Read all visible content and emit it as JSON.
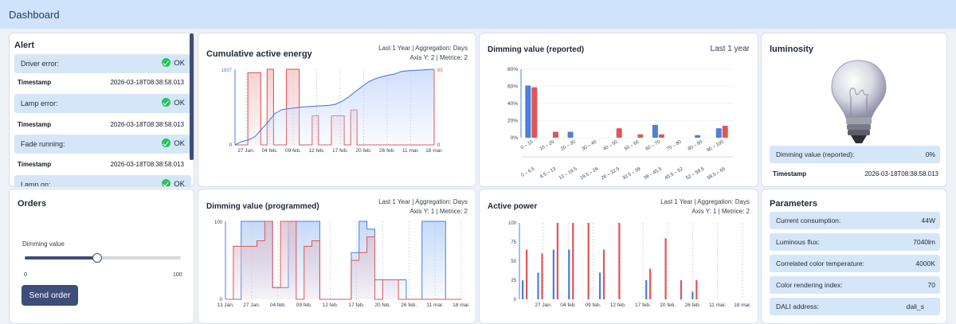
{
  "header": {
    "title": "Dashboard"
  },
  "alert": {
    "title": "Alert",
    "items": [
      {
        "label": "Driver error:",
        "status": "OK",
        "timestamp_label": "Timestamp",
        "timestamp": "2026-03-18T08:38:58.013"
      },
      {
        "label": "Lamp error:",
        "status": "OK",
        "timestamp_label": "Timestamp",
        "timestamp": "2026-03-18T08:38:58.013"
      },
      {
        "label": "Fade running:",
        "status": "OK",
        "timestamp_label": "Timestamp",
        "timestamp": "2026-03-18T08:38:58.013"
      },
      {
        "label": "Lamp on:",
        "status": "OK"
      }
    ]
  },
  "orders": {
    "title": "Orders",
    "slider_label": "Dimming value",
    "slider_min": "0",
    "slider_max": "100",
    "slider_value": 0.46,
    "button_label": "Send order"
  },
  "energy": {
    "title": "Cumulative active energy",
    "meta1": "Last 1 Year | Aggregation: Days",
    "meta2": "Axis Y: 2 | Metrice: 2",
    "chart_data": {
      "type": "line",
      "left_axis": {
        "max_label": "1837",
        "min_label": "0"
      },
      "right_axis": {
        "max_label": "65",
        "min_label": "0"
      },
      "x_labels": [
        "27 Jan.",
        "04 feb.",
        "09 feb.",
        "12 feb.",
        "17 feb.",
        "20 feb.",
        "26 feb.",
        "11 mar.",
        "18 mar."
      ],
      "series": [
        {
          "color": "#4a7fe0",
          "fill": "#c9d9fb",
          "axis": "left",
          "values": [
            0,
            80,
            120,
            200,
            380,
            560,
            760,
            850,
            880,
            900,
            920,
            930,
            940,
            950,
            960,
            980,
            1050,
            1150,
            1280,
            1400,
            1520,
            1600,
            1650,
            1690,
            1720,
            1780,
            1800,
            1810,
            1820,
            1830,
            1837
          ]
        },
        {
          "color": "#e05555",
          "fill": "#f6c8c8",
          "axis": "right",
          "values": [
            0,
            0,
            62,
            62,
            0,
            65,
            0,
            0,
            65,
            65,
            0,
            0,
            25,
            0,
            0,
            25,
            25,
            0,
            30,
            0,
            0,
            0,
            0,
            0,
            0,
            0,
            0,
            0,
            0,
            0,
            0
          ]
        }
      ]
    }
  },
  "dimming_reported": {
    "title": "Dimming value (reported)",
    "range": "Last 1 year",
    "chart_data": {
      "type": "bar",
      "y_tick_labels": [
        "0%",
        "20%",
        "40%",
        "60%",
        "80%"
      ],
      "ylim": [
        0,
        80
      ],
      "categories": [
        "0 – 10",
        "10 – 20",
        "20 – 30",
        "30 – 40",
        "40 – 50",
        "50 – 60",
        "60 – 70",
        "70 – 80",
        "80 – 90",
        "90 – 100"
      ],
      "secondary_categories": [
        "0 – 6.5",
        "6.5 – 13",
        "13 – 19.5",
        "19.5 – 26",
        "26 – 32.5",
        "32.5 – 39",
        "39 – 45.5",
        "45.5 – 52",
        "52 – 58.5",
        "58.5 – 65"
      ],
      "series": [
        {
          "color": "#4a7fe0",
          "values": [
            61,
            0,
            7,
            0,
            0,
            0,
            15,
            0,
            3,
            11
          ]
        },
        {
          "color": "#e05555",
          "values": [
            59,
            7,
            0,
            0,
            11,
            4,
            4,
            0,
            0,
            14
          ]
        }
      ]
    }
  },
  "luminosity": {
    "title": "luminosity",
    "dimming_label": "Dimming value (reported):",
    "dimming_value": "0%",
    "timestamp_label": "Timestamp",
    "timestamp": "2026-03-18T08:38:58.013"
  },
  "programmed": {
    "title": "Dimming value (programmed)",
    "meta1": "Last 1 Year | Aggregation: Days",
    "meta2": "Axis Y: 1 | Metrice: 2",
    "chart_data": {
      "type": "area",
      "y_tick_labels": [
        "0",
        "100"
      ],
      "ylim": [
        0,
        100
      ],
      "x_labels": [
        "13 Jan.",
        "27 Jan.",
        "04 feb.",
        "09 feb.",
        "12 feb.",
        "17 feb.",
        "20 feb.",
        "26 feb.",
        "11 mar.",
        "18 mar."
      ],
      "series": [
        {
          "color": "#4a7fe0",
          "fill": "#bcd3f7",
          "values": [
            0,
            0,
            100,
            100,
            100,
            100,
            15,
            15,
            100,
            100,
            100,
            100,
            0,
            0,
            0,
            0,
            60,
            100,
            90,
            25,
            25,
            25,
            25,
            0,
            0,
            100,
            100,
            100,
            0,
            0
          ]
        },
        {
          "color": "#e05555",
          "fill": "#ddc0cf",
          "values": [
            0,
            68,
            68,
            68,
            75,
            100,
            15,
            100,
            100,
            0,
            68,
            75,
            0,
            0,
            0,
            0,
            50,
            60,
            80,
            0,
            25,
            25,
            0,
            0,
            0,
            0,
            0,
            0,
            0,
            0
          ]
        }
      ]
    }
  },
  "active_power": {
    "title": "Active power",
    "meta1": "Last 1 Year | Aggregation: Days",
    "meta2": "Axis Y: 1 | Metrice: 2",
    "chart_data": {
      "type": "bar",
      "y_tick_labels": [
        "0",
        "25",
        "50",
        "75",
        "100"
      ],
      "ylim": [
        0,
        100
      ],
      "x_labels": [
        "27 Jan.",
        "04 feb.",
        "09 feb.",
        "12 feb.",
        "17 feb.",
        "20 feb.",
        "26 feb.",
        "11 mar.",
        "18 mar."
      ],
      "series": [
        {
          "color": "#4a7fe0",
          "values": [
            25,
            35,
            65,
            65,
            0,
            35,
            0,
            0,
            25,
            0,
            0,
            10,
            0
          ]
        },
        {
          "color": "#e05555",
          "values": [
            65,
            60,
            100,
            100,
            100,
            65,
            100,
            0,
            40,
            80,
            25,
            25,
            0
          ]
        }
      ]
    }
  },
  "parameters": {
    "title": "Parameters",
    "items": [
      {
        "label": "Current consumption:",
        "value": "44W"
      },
      {
        "label": "Luminous flux:",
        "value": "7040lm"
      },
      {
        "label": "Correlated color temperature:",
        "value": "4000K"
      },
      {
        "label": "Color rendering index:",
        "value": "70"
      },
      {
        "label": "DALI address:",
        "value": "dali_s"
      }
    ]
  }
}
